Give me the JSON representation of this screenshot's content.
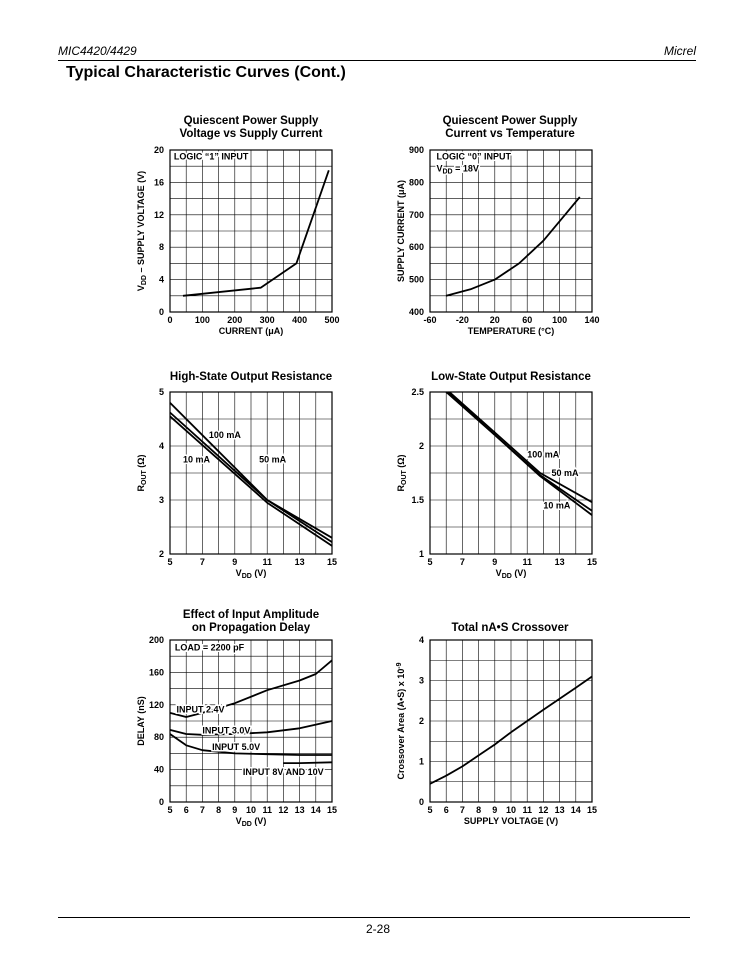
{
  "page": {
    "header_left": "MIC4420/4429",
    "header_right": "Micrel",
    "section_title": "Typical Characteristic Curves (Cont.)",
    "page_number": "2-28"
  },
  "chart_data": [
    {
      "id": "c1",
      "type": "line",
      "title_lines": [
        "Quiescent Power Supply",
        "Voltage vs Supply Current"
      ],
      "xlabel": "CURRENT (μA)",
      "ylabel": "V<sub>DD</sub> – SUPPLY VOLTAGE (V)",
      "xlim": [
        0,
        500
      ],
      "ylim": [
        0,
        20
      ],
      "xticks": [
        0,
        100,
        200,
        300,
        400,
        500
      ],
      "yticks": [
        0,
        4,
        8,
        12,
        16,
        20
      ],
      "grid_x": 10,
      "grid_y": 10,
      "annotations": [
        {
          "text": "LOGIC “1” INPUT",
          "x": 12,
          "y": 19.2
        }
      ],
      "series": [
        {
          "points": [
            [
              40,
              2
            ],
            [
              280,
              3
            ],
            [
              390,
              6
            ],
            [
              490,
              17.5
            ]
          ]
        }
      ]
    },
    {
      "id": "c2",
      "type": "line",
      "title_lines": [
        "Quiescent Power Supply",
        "Current vs Temperature"
      ],
      "xlabel": "TEMPERATURE (°C)",
      "ylabel": "SUPPLY CURRENT (μA)",
      "xlim": [
        -60,
        140
      ],
      "ylim": [
        400,
        900
      ],
      "xticks": [
        -60,
        -20,
        20,
        60,
        100,
        140
      ],
      "yticks": [
        400,
        500,
        600,
        700,
        800,
        900
      ],
      "grid_x": 10,
      "grid_y": 10,
      "annotations": [
        {
          "text": "LOGIC “0” INPUT",
          "x": -52,
          "y": 880
        },
        {
          "text": "V<sub>DD</sub> = 18V",
          "x": -52,
          "y": 843
        }
      ],
      "series": [
        {
          "points": [
            [
              -40,
              450
            ],
            [
              -10,
              470
            ],
            [
              20,
              500
            ],
            [
              50,
              550
            ],
            [
              80,
              620
            ],
            [
              110,
              710
            ],
            [
              125,
              755
            ]
          ]
        }
      ]
    },
    {
      "id": "c3",
      "type": "line",
      "title_lines": [
        "High-State Output Resistance"
      ],
      "xlabel": "V<sub>DD</sub> (V)",
      "ylabel": "R<sub>OUT</sub> (Ω)",
      "xlim": [
        5,
        15
      ],
      "ylim": [
        2,
        5
      ],
      "xticks": [
        5,
        7,
        9,
        11,
        13,
        15
      ],
      "yticks": [
        2,
        3,
        4,
        5
      ],
      "grid_x": 10,
      "grid_y": 6,
      "annotations": [
        {
          "text": "100 mA",
          "x": 7.4,
          "y": 4.2
        },
        {
          "text": "10 mA",
          "x": 5.8,
          "y": 3.75
        },
        {
          "text": "50 mA",
          "x": 10.5,
          "y": 3.75
        }
      ],
      "series": [
        {
          "name": "100 mA",
          "points": [
            [
              5,
              4.8
            ],
            [
              11,
              3.0
            ],
            [
              15,
              2.3
            ]
          ]
        },
        {
          "name": "50 mA",
          "points": [
            [
              5,
              4.62
            ],
            [
              11,
              3.0
            ],
            [
              15,
              2.22
            ]
          ]
        },
        {
          "name": "10 mA",
          "points": [
            [
              5,
              4.55
            ],
            [
              11,
              2.95
            ],
            [
              15,
              2.15
            ]
          ]
        }
      ]
    },
    {
      "id": "c4",
      "type": "line",
      "title_lines": [
        "Low-State Output Resistance"
      ],
      "xlabel": "V<sub>DD</sub> (V)",
      "ylabel": "R<sub>OUT</sub> (Ω)",
      "xlim": [
        5,
        15
      ],
      "ylim": [
        1,
        2.5
      ],
      "xticks": [
        5,
        7,
        9,
        11,
        13,
        15
      ],
      "yticks": [
        1,
        1.5,
        2,
        2.5
      ],
      "grid_x": 10,
      "grid_y": 6,
      "annotations": [
        {
          "text": "100 mA",
          "x": 11,
          "y": 1.92
        },
        {
          "text": "50 mA",
          "x": 12.5,
          "y": 1.75
        },
        {
          "text": "10 mA",
          "x": 12.0,
          "y": 1.45
        }
      ],
      "series": [
        {
          "name": "100 mA",
          "points": [
            [
              6.2,
              2.5
            ],
            [
              11.8,
              1.75
            ],
            [
              15,
              1.48
            ]
          ]
        },
        {
          "name": "50 mA",
          "points": [
            [
              6.0,
              2.5
            ],
            [
              11.8,
              1.73
            ],
            [
              15,
              1.4
            ]
          ]
        },
        {
          "name": "10 mA",
          "points": [
            [
              6.1,
              2.5
            ],
            [
              11.8,
              1.72
            ],
            [
              15,
              1.36
            ]
          ]
        }
      ]
    },
    {
      "id": "c5",
      "type": "line",
      "title_lines": [
        "Effect of Input Amplitude",
        "on Propagation Delay"
      ],
      "xlabel": "V<sub>DD</sub> (V)",
      "ylabel": "DELAY (nS)",
      "xlim": [
        5,
        15
      ],
      "ylim": [
        0,
        200
      ],
      "xticks": [
        5,
        6,
        7,
        8,
        9,
        10,
        11,
        12,
        13,
        14,
        15
      ],
      "yticks": [
        0,
        40,
        80,
        120,
        160,
        200
      ],
      "grid_x": 10,
      "grid_y": 10,
      "annotations": [
        {
          "text": "LOAD = 2200 pF",
          "x": 5.3,
          "y": 191
        },
        {
          "text": "INPUT 2.4V",
          "x": 5.4,
          "y": 114
        },
        {
          "text": "INPUT 3.0V",
          "x": 7.0,
          "y": 88
        },
        {
          "text": "INPUT 5.0V",
          "x": 7.6,
          "y": 68
        },
        {
          "text": "INPUT 8V AND 10V",
          "x": 9.5,
          "y": 37
        }
      ],
      "series": [
        {
          "name": "INPUT 2.4V",
          "points": [
            [
              5,
              110
            ],
            [
              6,
              105
            ],
            [
              7,
              110
            ],
            [
              9,
              122
            ],
            [
              11,
              138
            ],
            [
              13,
              150
            ],
            [
              14,
              158
            ],
            [
              15,
              175
            ]
          ]
        },
        {
          "name": "INPUT 3.0V",
          "points": [
            [
              5,
              89
            ],
            [
              6,
              84
            ],
            [
              7,
              83
            ],
            [
              9,
              84
            ],
            [
              11,
              86
            ],
            [
              13,
              91
            ],
            [
              15,
              100
            ]
          ]
        },
        {
          "name": "INPUT 5.0V",
          "points": [
            [
              5,
              84
            ],
            [
              6,
              70
            ],
            [
              7,
              64
            ],
            [
              9,
              60
            ],
            [
              11,
              59
            ],
            [
              13,
              58
            ],
            [
              15,
              58
            ]
          ]
        },
        {
          "name": "INPUT 8V AND 10V",
          "points": [
            [
              12,
              48
            ],
            [
              13,
              48
            ],
            [
              15,
              49
            ]
          ]
        }
      ]
    },
    {
      "id": "c6",
      "type": "line",
      "title_lines": [
        "Total nA•S Crossover"
      ],
      "xlabel": "SUPPLY VOLTAGE (V)",
      "ylabel": "Crossover Area (A•S) x 10<sup>-9</sup>",
      "xlim": [
        5,
        15
      ],
      "ylim": [
        0,
        4
      ],
      "xticks": [
        5,
        6,
        7,
        8,
        9,
        10,
        11,
        12,
        13,
        14,
        15
      ],
      "yticks": [
        0,
        1,
        2,
        3,
        4
      ],
      "grid_x": 10,
      "grid_y": 8,
      "annotations": [],
      "series": [
        {
          "points": [
            [
              5,
              0.45
            ],
            [
              6,
              0.65
            ],
            [
              7,
              0.88
            ],
            [
              8,
              1.15
            ],
            [
              9,
              1.42
            ],
            [
              10,
              1.72
            ],
            [
              11,
              2.0
            ],
            [
              12,
              2.28
            ],
            [
              13,
              2.55
            ],
            [
              14,
              2.82
            ],
            [
              15,
              3.1
            ]
          ]
        }
      ]
    }
  ]
}
